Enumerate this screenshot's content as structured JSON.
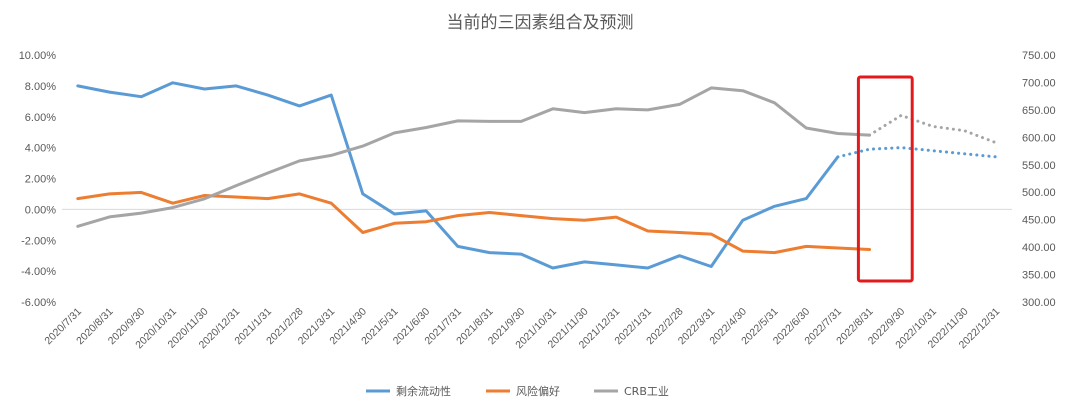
{
  "chart_data": {
    "type": "line",
    "title": "当前的三因素组合及预测",
    "x": [
      "2020/7/31",
      "2020/8/31",
      "2020/9/30",
      "2020/10/31",
      "2020/11/30",
      "2020/12/31",
      "2021/1/31",
      "2021/2/28",
      "2021/3/31",
      "2021/4/30",
      "2021/5/31",
      "2021/6/30",
      "2021/7/31",
      "2021/8/31",
      "2021/9/30",
      "2021/10/31",
      "2021/11/30",
      "2021/12/31",
      "2022/1/31",
      "2022/2/28",
      "2022/3/31",
      "2022/4/30",
      "2022/5/31",
      "2022/6/30",
      "2022/7/31",
      "2022/8/31",
      "2022/9/30",
      "2022/10/31",
      "2022/11/30",
      "2022/12/31"
    ],
    "y_left": {
      "ticks": [
        "10.00%",
        "8.00%",
        "6.00%",
        "4.00%",
        "2.00%",
        "0.00%",
        "-2.00%",
        "-4.00%",
        "-6.00%"
      ],
      "min": -6,
      "max": 10
    },
    "y_right": {
      "ticks": [
        "750.00",
        "700.00",
        "650.00",
        "600.00",
        "550.00",
        "500.00",
        "450.00",
        "400.00",
        "350.00",
        "300.00"
      ],
      "min": 300,
      "max": 750
    },
    "series": [
      {
        "name": "剩余流动性",
        "color": "#5b9bd5",
        "axis": "left",
        "values": [
          8.0,
          7.6,
          7.3,
          8.2,
          7.8,
          8.0,
          7.4,
          6.7,
          7.4,
          1.0,
          -0.3,
          -0.1,
          -2.4,
          -2.8,
          -2.9,
          -3.8,
          -3.4,
          -3.6,
          -3.8,
          -3.0,
          -3.7,
          -0.7,
          0.2,
          0.7,
          3.4,
          null,
          null,
          null,
          null,
          null
        ],
        "forecast": [
          null,
          null,
          null,
          null,
          null,
          null,
          null,
          null,
          null,
          null,
          null,
          null,
          null,
          null,
          null,
          null,
          null,
          null,
          null,
          null,
          null,
          null,
          null,
          null,
          3.4,
          3.9,
          4.0,
          3.8,
          3.6,
          3.4
        ]
      },
      {
        "name": "风险偏好",
        "color": "#ed7d31",
        "axis": "left",
        "values": [
          0.7,
          1.0,
          1.1,
          0.4,
          0.9,
          0.8,
          0.7,
          1.0,
          0.4,
          -1.5,
          -0.9,
          -0.8,
          -0.4,
          -0.2,
          -0.4,
          -0.6,
          -0.7,
          -0.5,
          -1.4,
          -1.5,
          -1.6,
          -2.7,
          -2.8,
          -2.4,
          -2.5,
          -2.6,
          null,
          null,
          null,
          null
        ],
        "forecast": []
      },
      {
        "name": "CRB工业",
        "color": "#a5a5a5",
        "axis": "right",
        "values": [
          438,
          455,
          462,
          472,
          488,
          512,
          535,
          557,
          567,
          584,
          608,
          618,
          630,
          629,
          629,
          652,
          645,
          652,
          650,
          660,
          690,
          685,
          663,
          617,
          607,
          604,
          null,
          null,
          null,
          null
        ],
        "forecast": [
          null,
          null,
          null,
          null,
          null,
          null,
          null,
          null,
          null,
          null,
          null,
          null,
          null,
          null,
          null,
          null,
          null,
          null,
          null,
          null,
          null,
          null,
          null,
          null,
          null,
          604,
          640,
          620,
          612,
          590
        ]
      }
    ],
    "highlight": {
      "from": "2022/8/31",
      "to": "2022/9/30",
      "color": "#e31a1c"
    },
    "grid": false,
    "legend_position": "bottom"
  }
}
